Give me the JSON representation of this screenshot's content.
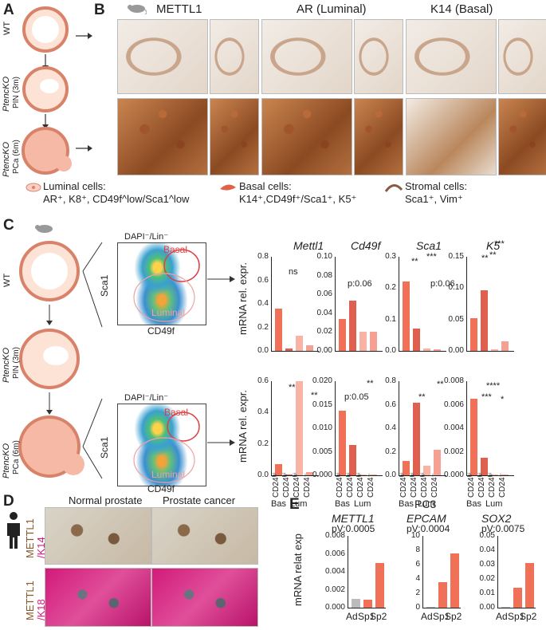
{
  "panels": {
    "A": "A",
    "B": "B",
    "C": "C",
    "D": "D",
    "E": "E"
  },
  "panelA": {
    "wt": "WT",
    "pin_gene": "PtencKO",
    "pin_sub": "PIN (3m)",
    "pca_gene": "PtencKO",
    "pca_sub": "PCa (6m)"
  },
  "panelB": {
    "col1": "METTL1",
    "col2": "AR (Luminal)",
    "col3": "K14 (Basal)"
  },
  "legend": {
    "luminal_title": "Luminal cells:",
    "luminal_markers": "AR⁺, K8⁺, CD49f^low/Sca1^low",
    "basal_title": "Basal cells:",
    "basal_markers": "K14⁺,CD49f⁺/Sca1⁺, K5⁺",
    "stromal_title": "Stromal cells:",
    "stromal_markers": "Sca1⁺, Vim⁺"
  },
  "panelC": {
    "flow_title": "DAPI⁻/Lin⁻",
    "gate_basal": "Basal",
    "gate_luminal": "Luminal",
    "axis_y": "Sca1",
    "axis_x": "CD49f",
    "ylabel": "mRNA rel. expr.",
    "genes": [
      "Mettl1",
      "Cd49f",
      "Sca1",
      "K5"
    ],
    "xcats": [
      "CD24ʰⁱ",
      "CD24ʰⁱ",
      "CD24ʰⁱ",
      "CD24⁻"
    ],
    "group_bas": "Bas",
    "group_lum": "Lum",
    "stats_wt": [
      "ns",
      "p:0.06",
      "**",
      "***",
      "p:0.06",
      "**",
      "**",
      "***"
    ],
    "stats_pca": [
      "**",
      "**",
      "p:0.05",
      "**",
      "**",
      "**",
      "****",
      "***",
      "*"
    ],
    "ticks_wt": {
      "Mettl1": [
        "0.8",
        "0.6",
        "0.4",
        "0.2",
        "0.0"
      ],
      "Cd49f": [
        "0.10",
        "0.08",
        "0.06",
        "0.04",
        "0.02",
        "0.00"
      ],
      "Sca1": [
        "0.3",
        "0.2",
        "0.1",
        "0.0"
      ],
      "K5": [
        "0.15",
        "0.10",
        "0.05",
        "0.00"
      ]
    },
    "ticks_pca": {
      "Mettl1": [
        "0.6",
        "0.4",
        "0.2",
        "0.0"
      ],
      "Cd49f": [
        "0.020",
        "0.015",
        "0.010",
        "0.005",
        "0.000"
      ],
      "Sca1": [
        "0.8",
        "0.6",
        "0.4",
        "0.2",
        "0.0"
      ],
      "K5": [
        "0.008",
        "0.006",
        "0.004",
        "0.002",
        "0.000"
      ]
    }
  },
  "panelD": {
    "col1": "Normal prostate",
    "col2": "Prostate cancer",
    "row1_a": "METTL1",
    "row1_b": "/K14",
    "row2_a": "METTL1",
    "row2_b": "/K18"
  },
  "panelE": {
    "cell_line": "PC3",
    "ylabel": "mRNA relat exp",
    "charts": [
      {
        "gene": "METTL1",
        "pv": "pV:0.0005",
        "ticks": [
          "0.008",
          "0.006",
          "0.004",
          "0.002",
          "0.000"
        ]
      },
      {
        "gene": "EPCAM",
        "pv": "pV:0.0004",
        "ticks": [
          "10",
          "8",
          "6",
          "4",
          "2",
          "0"
        ]
      },
      {
        "gene": "SOX2",
        "pv": "pV:0.0075",
        "ticks": [
          "0.05",
          "0.04",
          "0.03",
          "0.02",
          "0.01",
          "0.00"
        ]
      }
    ],
    "xcats": [
      "Ad",
      "Sp1",
      "Sp2"
    ]
  },
  "chart_data": [
    {
      "type": "bar",
      "title": "Mettl1",
      "categories": [
        "Bas CD24hi",
        "Lum CD24hi",
        "Lum CD24hi",
        "Lum CD24-"
      ],
      "values": [
        0.36,
        0.02,
        0.13,
        0.05
      ],
      "ylim": [
        0,
        0.8
      ]
    },
    {
      "type": "bar",
      "title": "Cd49f",
      "categories": [
        "Bas CD24hi",
        "Lum CD24hi",
        "Lum CD24hi",
        "Lum CD24-"
      ],
      "values": [
        0.034,
        0.053,
        0.02,
        0.02
      ],
      "ylim": [
        0,
        0.1
      ]
    },
    {
      "type": "bar",
      "title": "Sca1",
      "categories": [
        "Bas CD24hi",
        "Lum CD24hi",
        "Lum CD24hi",
        "Lum CD24-"
      ],
      "values": [
        0.22,
        0.07,
        0.008,
        0.005
      ],
      "ylim": [
        0,
        0.3
      ]
    },
    {
      "type": "bar",
      "title": "K5",
      "categories": [
        "Bas CD24hi",
        "Lum CD24hi",
        "Lum CD24hi",
        "Lum CD24-"
      ],
      "values": [
        0.052,
        0.097,
        0.002,
        0.015
      ],
      "ylim": [
        0,
        0.15
      ]
    },
    {
      "type": "bar",
      "title": "Mettl1",
      "categories": [
        "Bas CD24hi",
        "Lum CD24hi",
        "Lum CD24hi",
        "Lum CD24-"
      ],
      "values": [
        0.07,
        0.0,
        0.6,
        0.02
      ],
      "ylim": [
        0,
        0.6
      ]
    },
    {
      "type": "bar",
      "title": "Cd49f",
      "categories": [
        "Bas CD24hi",
        "Lum CD24hi",
        "Lum CD24hi",
        "Lum CD24-"
      ],
      "values": [
        0.0138,
        0.0065,
        0.0,
        0.0
      ],
      "ylim": [
        0,
        0.02
      ]
    },
    {
      "type": "bar",
      "title": "Sca1",
      "categories": [
        "Bas CD24hi",
        "Lum CD24hi",
        "Lum CD24hi",
        "Lum CD24-"
      ],
      "values": [
        0.12,
        0.62,
        0.08,
        0.22
      ],
      "ylim": [
        0,
        0.8
      ]
    },
    {
      "type": "bar",
      "title": "K5",
      "categories": [
        "Bas CD24hi",
        "Lum CD24hi",
        "Lum CD24hi",
        "Lum CD24-"
      ],
      "values": [
        0.0065,
        0.0015,
        0.0,
        0.0
      ],
      "ylim": [
        0,
        0.008
      ]
    },
    {
      "type": "bar",
      "title": "METTL1",
      "categories": [
        "Ad",
        "Sp1",
        "Sp2"
      ],
      "values": [
        0.001,
        0.0009,
        0.005
      ],
      "ylim": [
        0,
        0.008
      ]
    },
    {
      "type": "bar",
      "title": "EPCAM",
      "categories": [
        "Ad",
        "Sp1",
        "Sp2"
      ],
      "values": [
        0.1,
        3.6,
        7.6
      ],
      "ylim": [
        0,
        10
      ]
    },
    {
      "type": "bar",
      "title": "SOX2",
      "categories": [
        "Ad",
        "Sp1",
        "Sp2"
      ],
      "values": [
        0.0005,
        0.014,
        0.031
      ],
      "ylim": [
        0,
        0.05
      ]
    }
  ]
}
